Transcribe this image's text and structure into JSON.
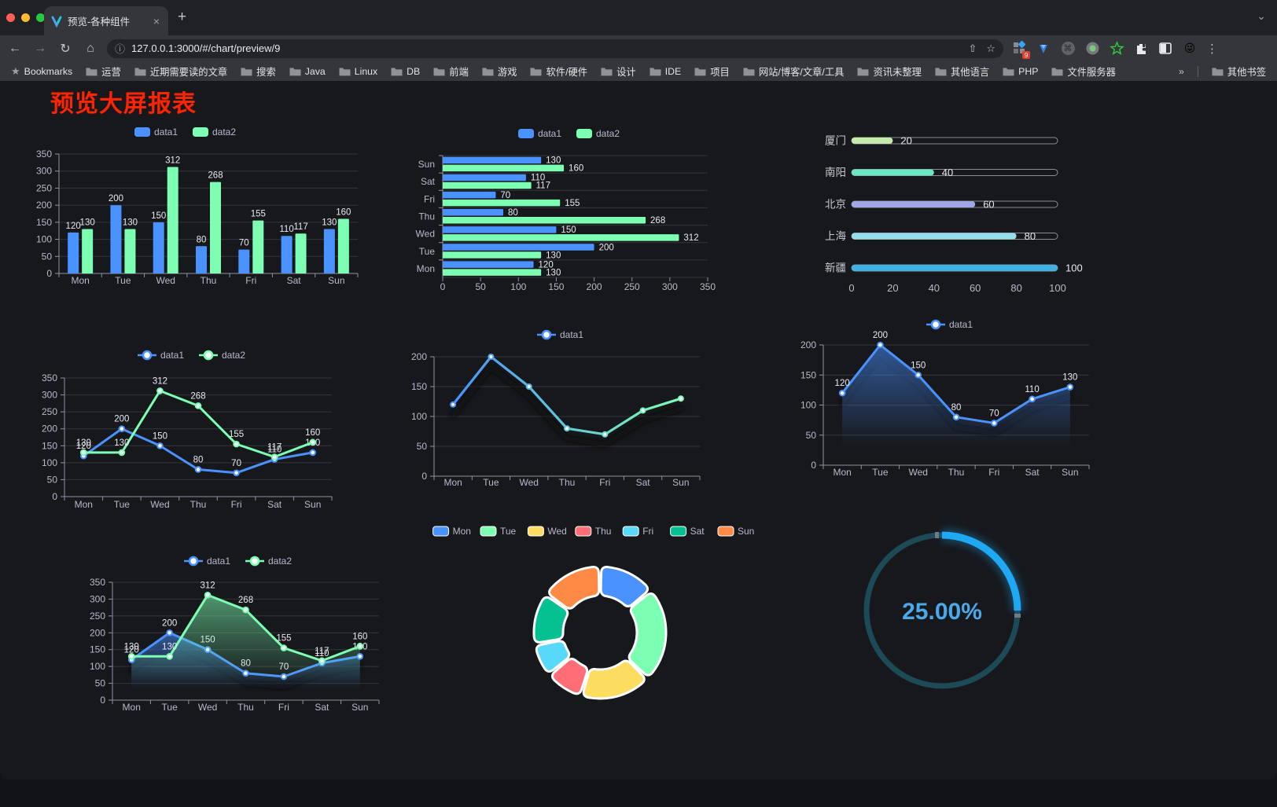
{
  "browser": {
    "tab": {
      "title": "预览-各种组件",
      "close_glyph": "×",
      "new_tab_glyph": "+",
      "chevron_glyph": "⌄"
    },
    "address": {
      "url": "127.0.0.1:3000/#/chart/preview/9",
      "info_glyph": "ⓘ"
    },
    "toolbar": {
      "back_glyph": "←",
      "forward_glyph": "→",
      "reload_glyph": "↻",
      "home_glyph": "⌂",
      "share_glyph": "⇧",
      "star_glyph": "☆",
      "menu_glyph": "⋮",
      "extension_badge": "9",
      "emoji_glyph": "😜",
      "command_glyph": "⌘"
    },
    "bookmarks_bar": {
      "label": "Bookmarks",
      "folders": [
        "运营",
        "近期需要读的文章",
        "搜索",
        "Java",
        "Linux",
        "DB",
        "前端",
        "游戏",
        "软件/硬件",
        "设计",
        "IDE",
        "项目",
        "网站/博客/文章/工具",
        "资讯未整理",
        "其他语言",
        "PHP",
        "文件服务器"
      ],
      "overflow_glyph": "»",
      "other_bookmarks": "其他书签"
    }
  },
  "page": {
    "title": "预览大屏报表",
    "title_color": "#ff2400"
  },
  "chart_data": [
    {
      "id": "bar-grouped",
      "type": "bar",
      "legend": [
        "data1",
        "data2"
      ],
      "legend_position": "top",
      "categories": [
        "Mon",
        "Tue",
        "Wed",
        "Thu",
        "Fri",
        "Sat",
        "Sun"
      ],
      "series": [
        {
          "name": "data1",
          "color": "#4992ff",
          "values": [
            120,
            200,
            150,
            80,
            70,
            110,
            130
          ]
        },
        {
          "name": "data2",
          "color": "#7cffb2",
          "values": [
            130,
            130,
            312,
            268,
            155,
            117,
            160
          ]
        }
      ],
      "ylim": [
        0,
        350
      ],
      "ystep": 50,
      "grid": true,
      "point_labels": true
    },
    {
      "id": "bar-horizontal",
      "type": "hbar",
      "legend": [
        "data1",
        "data2"
      ],
      "legend_position": "top",
      "categories": [
        "Mon",
        "Tue",
        "Wed",
        "Thu",
        "Fri",
        "Sat",
        "Sun"
      ],
      "category_order_top_to_bottom": [
        "Sun",
        "Sat",
        "Fri",
        "Thu",
        "Wed",
        "Tue",
        "Mon"
      ],
      "series": [
        {
          "name": "data1",
          "color": "#4992ff",
          "values": [
            120,
            200,
            150,
            80,
            70,
            110,
            130
          ]
        },
        {
          "name": "data2",
          "color": "#7cffb2",
          "values": [
            130,
            130,
            312,
            268,
            155,
            117,
            160
          ]
        }
      ],
      "xlim": [
        0,
        350
      ],
      "xstep": 50,
      "point_labels": true
    },
    {
      "id": "city-progress",
      "type": "progress",
      "categories": [
        "厦门",
        "南阳",
        "北京",
        "上海",
        "新疆"
      ],
      "values": [
        20,
        40,
        60,
        80,
        100
      ],
      "colors": [
        "#c4ebad",
        "#6be6c1",
        "#a0a7e6",
        "#96dee8",
        "#3fb1e3"
      ],
      "xlim": [
        0,
        100
      ],
      "xstep": 20,
      "point_labels": true
    },
    {
      "id": "line-two-series",
      "type": "line",
      "legend": [
        "data1",
        "data2"
      ],
      "legend_position": "top",
      "categories": [
        "Mon",
        "Tue",
        "Wed",
        "Thu",
        "Fri",
        "Sat",
        "Sun"
      ],
      "series": [
        {
          "name": "data1",
          "color": "#4992ff",
          "values": [
            120,
            200,
            150,
            80,
            70,
            110,
            130
          ]
        },
        {
          "name": "data2",
          "color": "#7cffb2",
          "values": [
            130,
            130,
            312,
            268,
            155,
            117,
            160
          ]
        }
      ],
      "ylim": [
        0,
        350
      ],
      "ystep": 50,
      "point_labels": true
    },
    {
      "id": "line-gradient",
      "type": "gline",
      "legend": [
        "data1"
      ],
      "legend_position": "top",
      "categories": [
        "Mon",
        "Tue",
        "Wed",
        "Thu",
        "Fri",
        "Sat",
        "Sun"
      ],
      "series": [
        {
          "name": "data1",
          "gradient": [
            "#4992ff",
            "#7cffb2"
          ],
          "values": [
            120,
            200,
            150,
            80,
            70,
            110,
            130
          ]
        }
      ],
      "ylim": [
        0,
        200
      ],
      "ystep": 50,
      "point_labels": false,
      "shadow": true
    },
    {
      "id": "area-single",
      "type": "area",
      "legend": [
        "data1"
      ],
      "legend_position": "top",
      "categories": [
        "Mon",
        "Tue",
        "Wed",
        "Thu",
        "Fri",
        "Sat",
        "Sun"
      ],
      "series": [
        {
          "name": "data1",
          "color": "#4992ff",
          "values": [
            120,
            200,
            150,
            80,
            70,
            110,
            130
          ]
        }
      ],
      "ylim": [
        0,
        200
      ],
      "ystep": 50,
      "point_labels": true,
      "shadow": true
    },
    {
      "id": "area-two-series",
      "type": "area",
      "legend": [
        "data1",
        "data2"
      ],
      "legend_position": "top",
      "categories": [
        "Mon",
        "Tue",
        "Wed",
        "Thu",
        "Fri",
        "Sat",
        "Sun"
      ],
      "series": [
        {
          "name": "data1",
          "color": "#4992ff",
          "values": [
            120,
            200,
            150,
            80,
            70,
            110,
            130
          ]
        },
        {
          "name": "data2",
          "color": "#7cffb2",
          "values": [
            130,
            130,
            312,
            268,
            155,
            117,
            160
          ]
        }
      ],
      "ylim": [
        0,
        350
      ],
      "ystep": 50,
      "point_labels": true,
      "shadow": true
    },
    {
      "id": "donut-week",
      "type": "pie",
      "legend_position": "top",
      "categories": [
        "Mon",
        "Tue",
        "Wed",
        "Thu",
        "Fri",
        "Sat",
        "Sun"
      ],
      "values": [
        120,
        200,
        150,
        80,
        70,
        110,
        130
      ],
      "colors": [
        "#4992ff",
        "#7cffb2",
        "#fddd60",
        "#ff6e76",
        "#58d9f9",
        "#05c091",
        "#ff8a45"
      ],
      "inner_radius_ratio": 0.56,
      "border_color": "#ffffff"
    },
    {
      "id": "gauge-percent",
      "type": "gauge",
      "value": 25,
      "max": 100,
      "label": "25.00%",
      "arc_color": "#1fa9f5",
      "track_color": "#1d4a57",
      "text_color": "#4aa9ea"
    }
  ]
}
